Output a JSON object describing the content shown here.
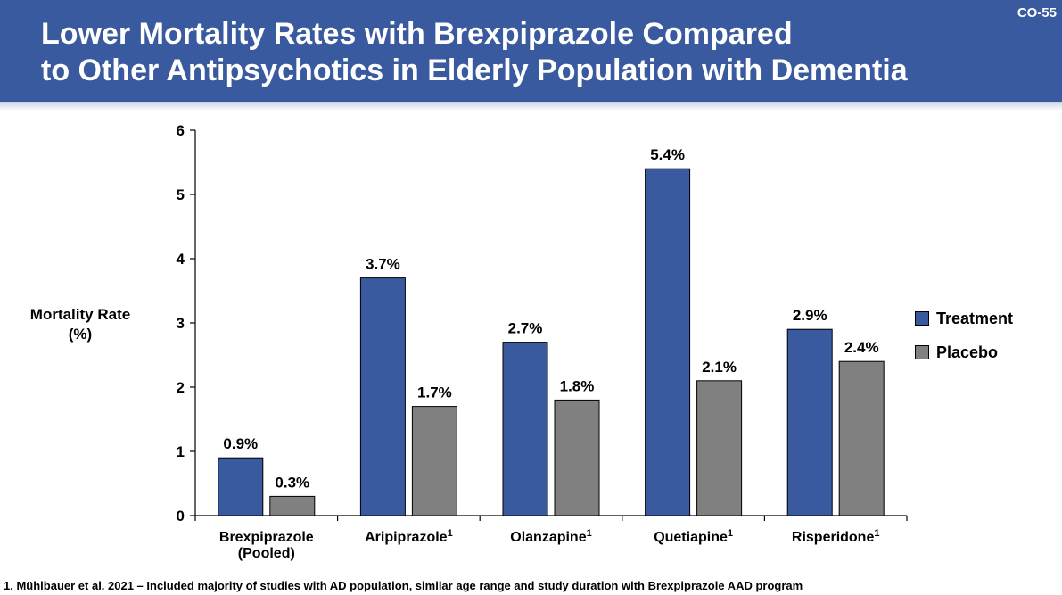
{
  "slide": {
    "id": "CO-55",
    "title_lines": [
      "Lower Mortality Rates with Brexpiprazole Compared",
      "to Other Antipsychotics in Elderly Population with Dementia"
    ],
    "footnote": "1. Mühlbauer et al. 2021 – Included majority of studies with AD population, similar age range and study duration with Brexpiprazole AAD program"
  },
  "colors": {
    "header": "#3a5a9f",
    "treatment": "#3a5aa0",
    "placebo": "#808080"
  },
  "chart_data": {
    "type": "bar",
    "title": "",
    "ylabel": "Mortality Rate (%)",
    "ylabel_lines": [
      "Mortality Rate",
      "(%)"
    ],
    "xlabel": "",
    "ylim": [
      0,
      6
    ],
    "yticks": [
      0,
      1,
      2,
      3,
      4,
      5,
      6
    ],
    "categories": [
      {
        "lines": [
          "Brexpiprazole",
          "(Pooled)"
        ],
        "sup": ""
      },
      {
        "lines": [
          "Aripiprazole"
        ],
        "sup": "1"
      },
      {
        "lines": [
          "Olanzapine"
        ],
        "sup": "1"
      },
      {
        "lines": [
          "Quetiapine"
        ],
        "sup": "1"
      },
      {
        "lines": [
          "Risperidone"
        ],
        "sup": "1"
      }
    ],
    "series": [
      {
        "name": "Treatment",
        "values": [
          0.9,
          3.7,
          2.7,
          5.4,
          2.9
        ],
        "labels": [
          "0.9%",
          "3.7%",
          "2.7%",
          "5.4%",
          "2.9%"
        ]
      },
      {
        "name": "Placebo",
        "values": [
          0.3,
          1.7,
          1.8,
          2.1,
          2.4
        ],
        "labels": [
          "0.3%",
          "1.7%",
          "1.8%",
          "2.1%",
          "2.4%"
        ]
      }
    ],
    "legend_position": "right",
    "grid": false
  }
}
